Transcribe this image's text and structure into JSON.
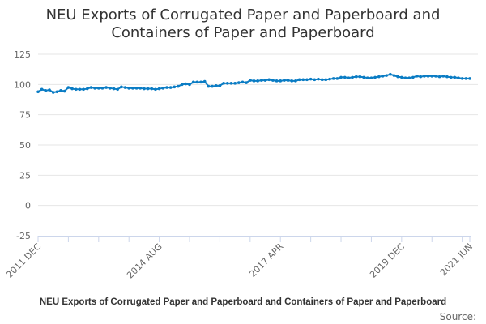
{
  "chart_data": {
    "type": "line",
    "title": "NEU Exports of Corrugated Paper and Paperboard and Containers of Paper and Paperboard",
    "title_lines": [
      "NEU Exports of Corrugated Paper and Paperboard and",
      "Containers of Paper and Paperboard"
    ],
    "xlabel": "",
    "ylabel": "",
    "ylim": [
      -25,
      125
    ],
    "yticks": [
      125,
      100,
      75,
      50,
      25,
      0,
      -25
    ],
    "x_start": "2011 DEC",
    "x_end": "2021 JUN",
    "x_tick_labels": [
      {
        "index": 0,
        "label": "2011 DEC"
      },
      {
        "index": 32,
        "label": "2014 AUG"
      },
      {
        "index": 64,
        "label": "2017 APR"
      },
      {
        "index": 96,
        "label": "2019 DEC"
      },
      {
        "index": 114,
        "label": "2021 JUN"
      }
    ],
    "x_tick_every": 8,
    "grid": true,
    "color": "#0a7cc4",
    "series": [
      {
        "name": "NEU Exports of Corrugated Paper and Paperboard and Containers of Paper and Paperboard",
        "values": [
          94,
          96,
          95,
          95.5,
          93.5,
          94,
          95,
          94.5,
          97.5,
          96.5,
          96,
          96,
          96,
          96.5,
          97.5,
          97,
          97,
          97,
          97.5,
          97,
          96.5,
          96,
          98,
          97.5,
          97,
          97,
          97,
          97,
          96.5,
          96.5,
          96.5,
          96,
          96.5,
          97,
          97.5,
          97.5,
          98,
          98.5,
          100,
          100.5,
          100,
          102,
          102,
          102,
          102.5,
          98.5,
          98.5,
          99,
          99,
          101,
          101,
          101,
          101,
          101.5,
          102,
          101.5,
          103.5,
          103,
          103,
          103.5,
          103.5,
          104,
          103.5,
          103,
          103,
          103.5,
          103.5,
          103,
          103,
          104,
          104,
          104,
          104.5,
          104,
          104.5,
          104,
          104,
          104.5,
          105,
          105,
          106,
          106,
          105.5,
          106,
          106.5,
          106.5,
          106,
          105.5,
          105.5,
          106,
          106.5,
          107,
          107.5,
          108.5,
          107.5,
          106.5,
          106,
          105.5,
          105.5,
          106,
          107,
          106.5,
          107,
          107,
          107,
          107,
          106.5,
          107,
          106.5,
          106,
          106,
          105.5,
          105,
          105,
          105
        ]
      }
    ]
  },
  "caption": "NEU Exports of Corrugated Paper and Paperboard and Containers of Paper and Paperboard",
  "source_label": "Source:"
}
